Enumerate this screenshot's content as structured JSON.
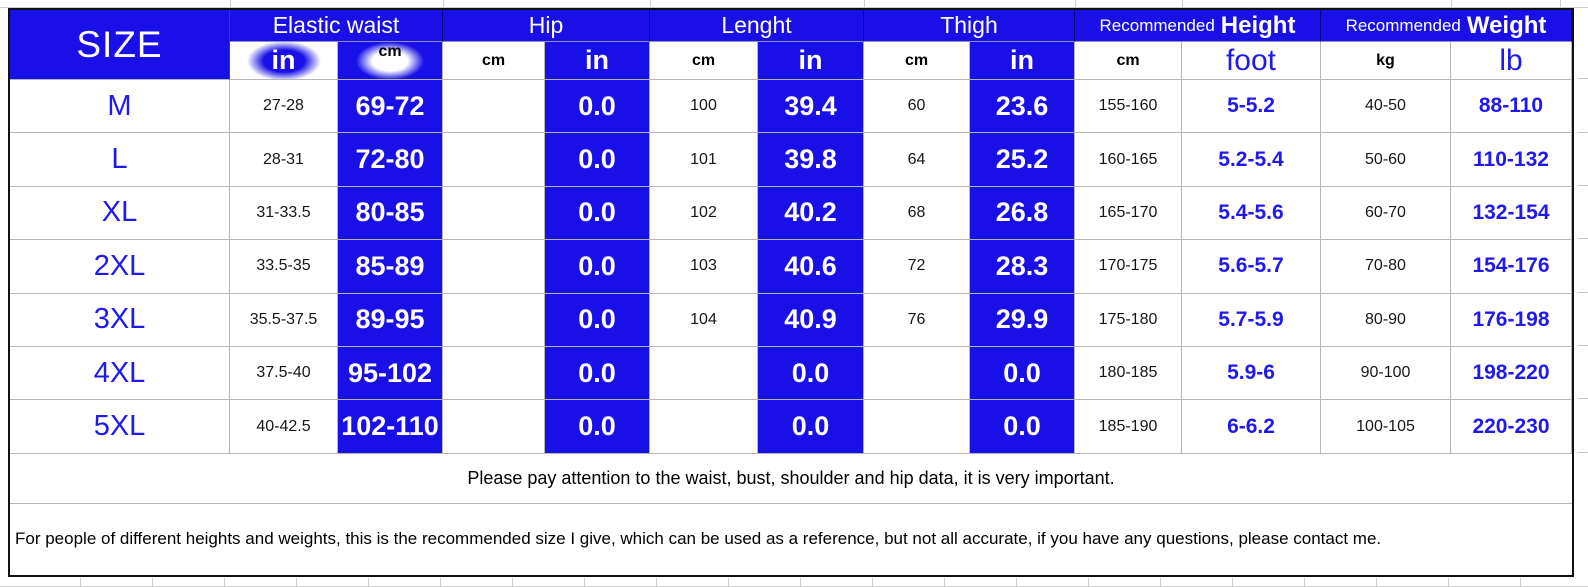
{
  "colors": {
    "blue": "#1810e6",
    "text_blue": "#1f1aeb",
    "grid": "#b6b6b6"
  },
  "chart_data": {
    "type": "table",
    "size_header": "SIZE",
    "groups": [
      {
        "label": "Elastic waist",
        "units": [
          {
            "label": "in",
            "style": "blob-blue"
          },
          {
            "label": "cm",
            "style": "blob-white"
          }
        ]
      },
      {
        "label": "Hip",
        "units": [
          {
            "label": "cm",
            "style": "plain"
          },
          {
            "label": "in",
            "style": "bluebg"
          }
        ]
      },
      {
        "label": "Lenght",
        "units": [
          {
            "label": "cm",
            "style": "plain"
          },
          {
            "label": "in",
            "style": "bluebg"
          }
        ]
      },
      {
        "label": "Thigh",
        "units": [
          {
            "label": "cm",
            "style": "plain"
          },
          {
            "label": "in",
            "style": "bluebg"
          }
        ]
      }
    ],
    "rec_groups": [
      {
        "prefix": "Recommended",
        "label": "Height",
        "units": [
          {
            "label": "cm",
            "style": "plain"
          },
          {
            "label": "foot",
            "style": "bluetext"
          }
        ]
      },
      {
        "prefix": "Recommended",
        "label": "Weight",
        "units": [
          {
            "label": "kg",
            "style": "plain"
          },
          {
            "label": "lb",
            "style": "bluetext"
          }
        ]
      }
    ],
    "body_col_styles": [
      "plain",
      "bluebg",
      "plain",
      "bluebg",
      "plain",
      "bluebg",
      "plain",
      "bluebg",
      "plain",
      "bluetext",
      "plain",
      "bluetext"
    ],
    "rows": [
      {
        "size": "M",
        "cells": [
          "27-28",
          "69-72",
          "",
          "0.0",
          "100",
          "39.4",
          "60",
          "23.6",
          "155-160",
          "5-5.2",
          "40-50",
          "88-110"
        ]
      },
      {
        "size": "L",
        "cells": [
          "28-31",
          "72-80",
          "",
          "0.0",
          "101",
          "39.8",
          "64",
          "25.2",
          "160-165",
          "5.2-5.4",
          "50-60",
          "110-132"
        ]
      },
      {
        "size": "XL",
        "cells": [
          "31-33.5",
          "80-85",
          "",
          "0.0",
          "102",
          "40.2",
          "68",
          "26.8",
          "165-170",
          "5.4-5.6",
          "60-70",
          "132-154"
        ]
      },
      {
        "size": "2XL",
        "cells": [
          "33.5-35",
          "85-89",
          "",
          "0.0",
          "103",
          "40.6",
          "72",
          "28.3",
          "170-175",
          "5.6-5.7",
          "70-80",
          "154-176"
        ]
      },
      {
        "size": "3XL",
        "cells": [
          "35.5-37.5",
          "89-95",
          "",
          "0.0",
          "104",
          "40.9",
          "76",
          "29.9",
          "175-180",
          "5.7-5.9",
          "80-90",
          "176-198"
        ]
      },
      {
        "size": "4XL",
        "cells": [
          "37.5-40",
          "95-102",
          "",
          "0.0",
          "",
          "0.0",
          "",
          "0.0",
          "180-185",
          "5.9-6",
          "90-100",
          "198-220"
        ]
      },
      {
        "size": "5XL",
        "cells": [
          "40-42.5",
          "102-110",
          "",
          "0.0",
          "",
          "0.0",
          "",
          "0.0",
          "185-190",
          "6-6.2",
          "100-105",
          "220-230"
        ]
      }
    ],
    "notes": [
      "Please pay attention to the waist, bust, shoulder and hip data, it is very important.",
      "For people of different heights and weights, this is the recommended size I give, which can be used as a reference, but not all accurate, if you have any questions, please contact me."
    ]
  }
}
